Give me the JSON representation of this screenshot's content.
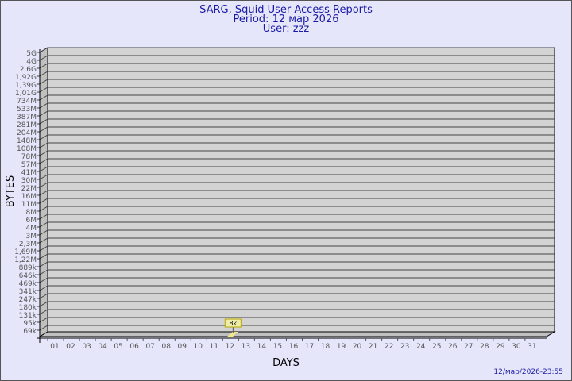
{
  "header": {
    "title": "SARG, Squid User Access Reports",
    "period": "Period: 12 мар 2026",
    "user": "User: zzz"
  },
  "footer": {
    "timestamp": "12/мар/2026-23:55"
  },
  "colors": {
    "title": "#1a1aa6",
    "plot_bg": "#d3d3d3",
    "bar": "#f0e68c",
    "label_box": "#eeeeaa"
  },
  "chart_data": {
    "type": "bar",
    "xlabel": "DAYS",
    "ylabel": "BYTES",
    "y_scale": "log",
    "y_ticks": [
      "5G",
      "4G",
      "2,6G",
      "1,92G",
      "1,39G",
      "1,01G",
      "734M",
      "533M",
      "387M",
      "281M",
      "204M",
      "148M",
      "108M",
      "78M",
      "57M",
      "41M",
      "30M",
      "22M",
      "16M",
      "11M",
      "8M",
      "6M",
      "4M",
      "3M",
      "2,3M",
      "1,69M",
      "1,22M",
      "889k",
      "646k",
      "469k",
      "341k",
      "247k",
      "180k",
      "131k",
      "95k",
      "69k"
    ],
    "categories": [
      "01",
      "02",
      "03",
      "04",
      "05",
      "06",
      "07",
      "08",
      "09",
      "10",
      "11",
      "12",
      "13",
      "14",
      "15",
      "16",
      "17",
      "18",
      "19",
      "20",
      "21",
      "22",
      "23",
      "24",
      "25",
      "26",
      "27",
      "28",
      "29",
      "30",
      "31"
    ],
    "values": [
      {
        "day": "12",
        "bytes": 8000,
        "label": "8k"
      }
    ],
    "grid": true
  }
}
